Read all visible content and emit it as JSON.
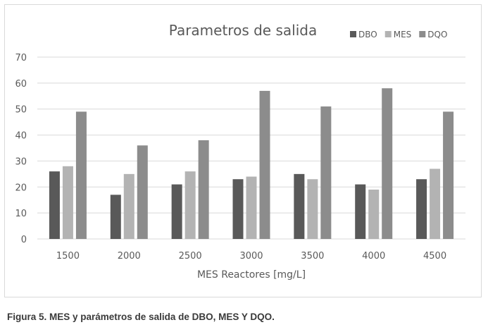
{
  "chart_data": {
    "type": "bar",
    "title": "Parametros de salida",
    "xlabel": "MES Reactores [mg/L]",
    "ylabel": "",
    "ylim": [
      0,
      70
    ],
    "yticks": [
      0,
      10,
      20,
      30,
      40,
      50,
      60,
      70
    ],
    "grid": true,
    "legend_position": "top-right",
    "categories": [
      "1500",
      "2000",
      "2500",
      "3000",
      "3500",
      "4000",
      "4500"
    ],
    "series": [
      {
        "name": "DBO",
        "color": "#595959",
        "values": [
          26,
          17,
          21,
          23,
          25,
          21,
          23
        ]
      },
      {
        "name": "MES",
        "color": "#b3b3b3",
        "values": [
          28,
          25,
          26,
          24,
          23,
          19,
          27
        ]
      },
      {
        "name": "DQO",
        "color": "#8c8c8c",
        "values": [
          49,
          36,
          38,
          57,
          51,
          58,
          49
        ]
      }
    ]
  },
  "caption": "Figura 5. MES y parámetros de salida de DBO, MES Y DQO."
}
